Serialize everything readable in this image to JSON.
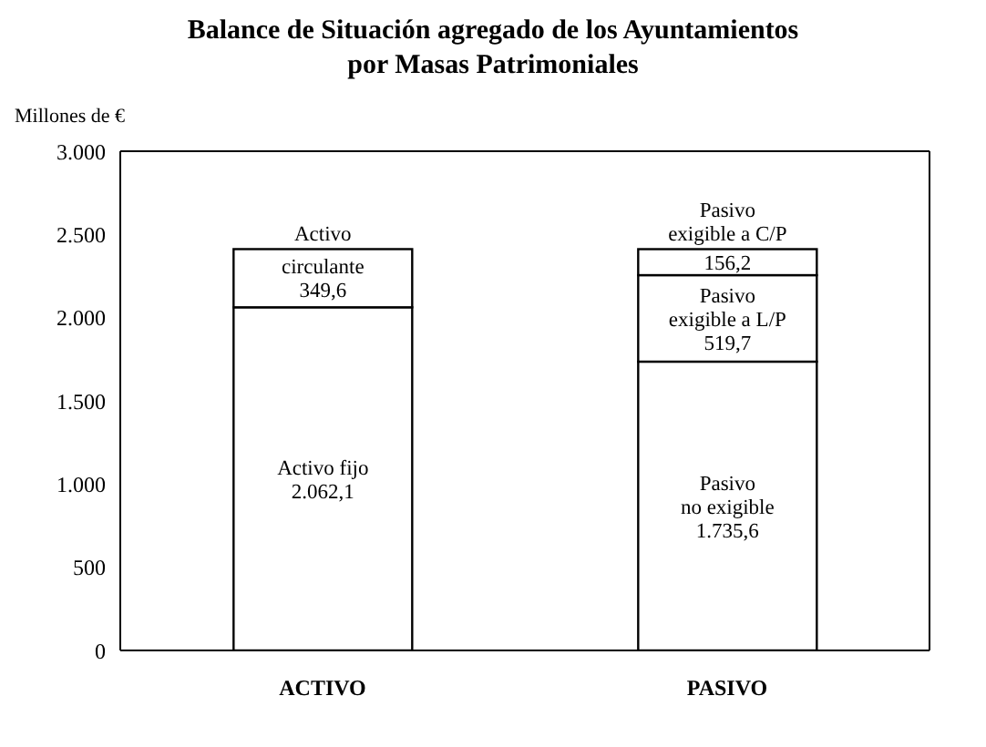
{
  "chart_data": {
    "type": "bar",
    "title": "Balance de Situación agregado de los Ayuntamientos por Masas Patrimoniales",
    "ylabel": "Millones de €",
    "categories": [
      "ACTIVO",
      "PASIVO"
    ],
    "stacked": true,
    "legend": false,
    "grid": false,
    "ylim": [
      0,
      3000
    ],
    "yticks": [
      0,
      500,
      {
        "value": 1000,
        "label": "1.000"
      },
      {
        "value": 1500,
        "label": "1.500"
      },
      {
        "value": 2000,
        "label": "2.000"
      },
      {
        "value": 2500,
        "label": "2.500"
      },
      {
        "value": 3000,
        "label": "3.000"
      }
    ],
    "series": [
      {
        "name": "Activo fijo",
        "color": "#ffffff",
        "values": [
          2062.1,
          null
        ],
        "value_labels": [
          "2.062,1",
          null
        ]
      },
      {
        "name": "Pasivo no exigible",
        "color": "#ffffff",
        "values": [
          null,
          1735.6
        ],
        "value_labels": [
          null,
          "1.735,6"
        ]
      },
      {
        "name": "Activo circulante",
        "color": "#ffffff",
        "values": [
          349.6,
          null
        ],
        "value_labels": [
          "349,6",
          null
        ]
      },
      {
        "name": "Pasivo exigible a L/P",
        "color": "#ffffff",
        "values": [
          null,
          519.7
        ],
        "value_labels": [
          null,
          "519,7"
        ]
      },
      {
        "name": "Pasivo exigible a C/P",
        "color": "#ffffff",
        "values": [
          null,
          156.2
        ],
        "value_labels": [
          null,
          "156,2"
        ]
      }
    ]
  }
}
